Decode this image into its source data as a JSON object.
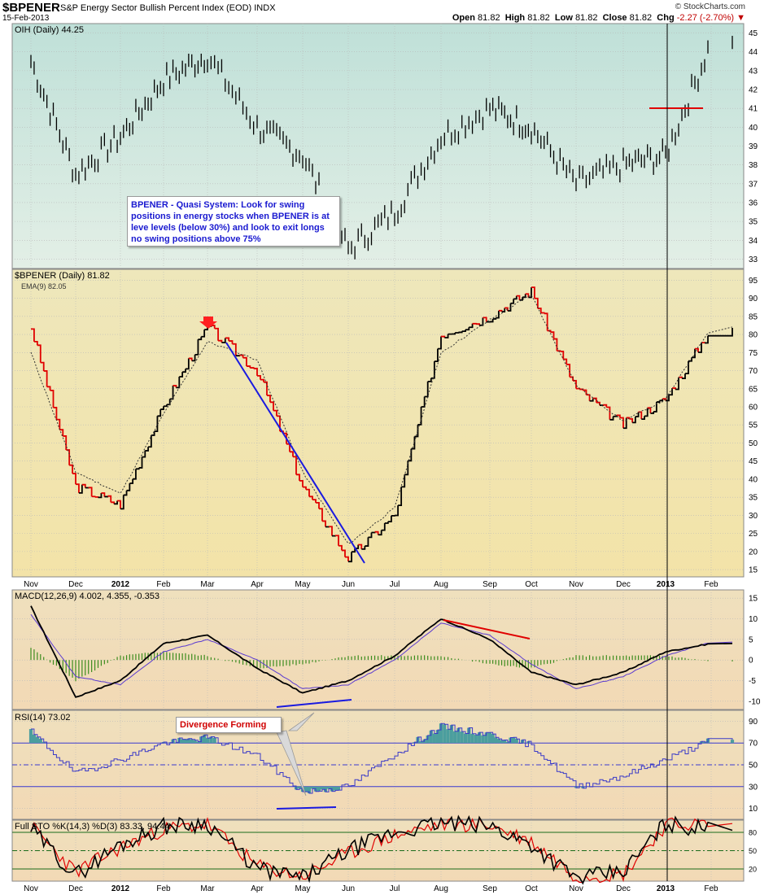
{
  "header": {
    "symbol": "$BPENER",
    "description": "S&P Energy Sector Bullish Percent Index (EOD)",
    "exchange": "INDX",
    "date": "15-Feb-2013",
    "brand": "© StockCharts.com",
    "open_label": "Open",
    "open": "81.82",
    "high_label": "High",
    "high": "81.82",
    "low_label": "Low",
    "low": "81.82",
    "close_label": "Close",
    "close": "81.82",
    "chg_label": "Chg",
    "chg": "-2.27 (-2.70%)",
    "chg_arrow": "▼"
  },
  "annotations": {
    "note": "BPENER - Quasi System:  Look for swing positions in energy stocks when BPENER is at leve levels (below 30%) and look to exit longs no swing positions above 75%",
    "divergence": "Divergence Forming"
  },
  "panels": {
    "oih_label": "OIH (Daily) 44.25",
    "bpener_label": "$BPENER (Daily) 81.82",
    "ema_label": "EMA(9) 82.05",
    "macd_label": "MACD(12,26,9) 4.002, 4.355, -0.353",
    "rsi_label": "RSI(14) 73.02",
    "sto_label": "Full STO %K(14,3) %D(3) 83.33, 94.44"
  },
  "x_axis_labels": [
    "Nov",
    "Dec",
    "2012",
    "Feb",
    "Mar",
    "Apr",
    "May",
    "Jun",
    "Jul",
    "Aug",
    "Sep",
    "Oct",
    "Nov",
    "Dec",
    "2013",
    "Feb"
  ],
  "colors": {
    "top_bg": "#cfe6df",
    "mid_bg": "#f1e7b2",
    "ind_bg": "#f1dcb8",
    "price_line": "#000000",
    "down_line": "#e00000",
    "trend_blue": "#1a1ae0",
    "macd_hist": "#3c8c1e",
    "rsi_fill": "#4b9e9e",
    "rsi_line": "#3a3ac8"
  },
  "chart_data": [
    {
      "type": "line",
      "name": "OIH (Daily)",
      "last": 44.25,
      "x": [
        "Nov",
        "Dec",
        "2012",
        "Feb",
        "Mar",
        "Apr",
        "May",
        "Jun",
        "Jul",
        "Aug",
        "Sep",
        "Oct",
        "Nov",
        "Dec",
        "2013",
        "Feb"
      ],
      "values": [
        43.5,
        37.5,
        39.5,
        42.5,
        43.8,
        40,
        38.5,
        33.5,
        35.5,
        39.5,
        41,
        40,
        37,
        38,
        38.5,
        44.5
      ],
      "yticks": [
        33,
        34,
        35,
        36,
        37,
        38,
        39,
        40,
        41,
        42,
        43,
        44,
        45
      ],
      "ylim": [
        32.5,
        45.5
      ]
    },
    {
      "type": "line",
      "name": "$BPENER (Daily)",
      "last": 81.82,
      "x": [
        "Nov",
        "Dec",
        "2012",
        "Feb",
        "Mar",
        "Apr",
        "May",
        "Jun",
        "Jul",
        "Aug",
        "Sep",
        "Oct",
        "Nov",
        "Dec",
        "2013",
        "Feb"
      ],
      "series": [
        {
          "name": "$BPENER",
          "values": [
            82,
            38,
            33,
            60,
            82,
            70,
            38,
            18,
            30,
            80,
            85,
            92,
            65,
            55,
            62,
            81.82
          ]
        },
        {
          "name": "EMA(9)",
          "values": [
            75,
            42,
            36,
            58,
            78,
            73,
            42,
            22,
            32,
            75,
            84,
            91,
            66,
            56,
            62,
            82.05
          ]
        }
      ],
      "yticks": [
        15,
        20,
        25,
        30,
        35,
        40,
        45,
        50,
        55,
        60,
        65,
        70,
        75,
        80,
        85,
        90,
        95
      ],
      "ylim": [
        13,
        98
      ]
    },
    {
      "type": "line",
      "name": "MACD(12,26,9)",
      "series": [
        {
          "name": "MACD",
          "values": [
            13,
            -9,
            -5,
            4,
            6,
            -2,
            -8,
            -5,
            1,
            10,
            5,
            -3,
            -6,
            -3,
            2,
            4.002
          ]
        },
        {
          "name": "Signal",
          "values": [
            11,
            -4,
            -6,
            2,
            5,
            0,
            -7,
            -6,
            0,
            9,
            6,
            -1,
            -7,
            -4,
            1,
            4.355
          ]
        },
        {
          "name": "Histogram",
          "values": [
            3,
            -5,
            1,
            2,
            1,
            -2,
            -1,
            1,
            1,
            1,
            -1,
            -2,
            1,
            1,
            1,
            -0.353
          ]
        }
      ],
      "yticks": [
        -10,
        -5,
        0,
        5,
        10,
        15
      ],
      "ylim": [
        -12,
        17
      ]
    },
    {
      "type": "line",
      "name": "RSI(14)",
      "values": [
        80,
        42,
        55,
        70,
        75,
        58,
        25,
        30,
        60,
        85,
        78,
        68,
        30,
        40,
        55,
        73.02
      ],
      "yticks": [
        10,
        30,
        50,
        70,
        90
      ],
      "ylim": [
        0,
        100
      ]
    },
    {
      "type": "line",
      "name": "Full STO %K(14,3) %D(3)",
      "series": [
        {
          "name": "%K",
          "values": [
            85,
            10,
            60,
            90,
            95,
            20,
            5,
            50,
            80,
            95,
            90,
            60,
            5,
            15,
            95,
            83.33
          ]
        },
        {
          "name": "%D",
          "values": [
            90,
            15,
            55,
            85,
            93,
            25,
            8,
            45,
            75,
            93,
            92,
            65,
            8,
            12,
            92,
            94.44
          ]
        }
      ],
      "yticks": [
        20,
        50,
        80
      ],
      "ylim": [
        0,
        100
      ]
    }
  ]
}
